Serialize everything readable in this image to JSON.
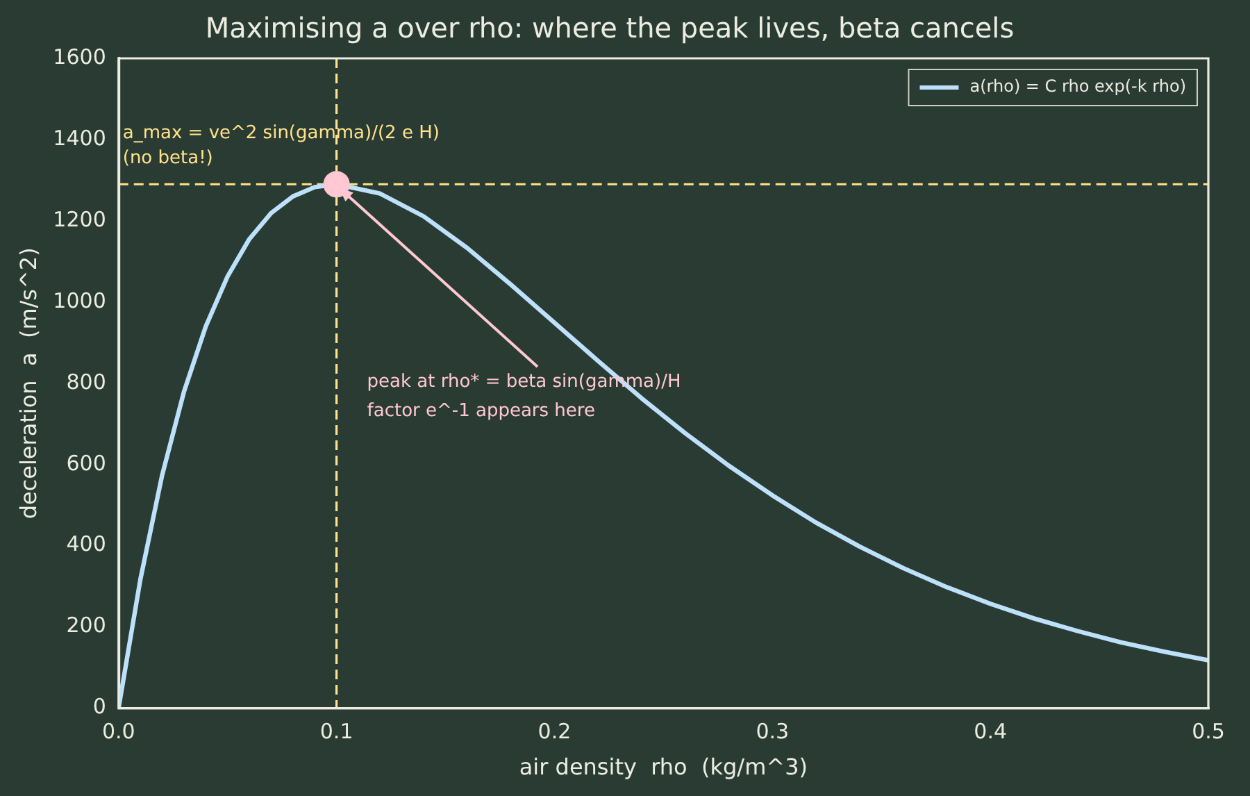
{
  "chart_data": {
    "type": "line",
    "title": "Maximising a over rho: where the peak lives, beta cancels",
    "xlabel": "air density  rho  (kg/m^3)",
    "ylabel": "deceleration  a  (m/s^2)",
    "xlim": [
      0,
      0.5
    ],
    "xticks": [
      {
        "value": 0,
        "label": "0.0"
      },
      0.1,
      0.2,
      0.3,
      0.4,
      0.5
    ],
    "ylim": [
      0,
      1600
    ],
    "yticks": [
      0,
      200,
      400,
      600,
      800,
      1000,
      1200,
      1400,
      1600
    ],
    "grid": false,
    "legend": "top right",
    "marker": "none",
    "line_style": "solid",
    "series": [
      {
        "name": "a(rho) = C rho exp(-k rho)",
        "color": "#bde0fb",
        "x": [
          0,
          0.01,
          0.02,
          0.03,
          0.04,
          0.05,
          0.06,
          0.07,
          0.08,
          0.09,
          0.1,
          0.12,
          0.14,
          0.16,
          0.18,
          0.2,
          0.22,
          0.24,
          0.26,
          0.28,
          0.3,
          0.32,
          0.34,
          0.36,
          0.38,
          0.4,
          0.42,
          0.44,
          0.46,
          0.48,
          0.5
        ],
        "values": [
          0,
          317,
          574,
          779,
          940,
          1063,
          1155,
          1219,
          1260,
          1283,
          1290,
          1267,
          1211,
          1133,
          1043,
          949,
          855,
          763,
          677,
          597,
          524,
          457,
          398,
          345,
          298,
          257,
          221,
          190,
          162,
          139,
          118
        ]
      },
      {
        "type": "scatter",
        "color": "#ffc8d2",
        "x": [
          0.1
        ],
        "values": [
          1290
        ],
        "marker": "circle"
      }
    ],
    "ref_lines": [
      {
        "axis": "x",
        "value": 0.1,
        "color": "#ffe28a",
        "line_style": "dashed"
      },
      {
        "axis": "y",
        "value": 1290,
        "color": "#ffe28a",
        "line_style": "dashed"
      }
    ],
    "annotations": [
      {
        "text": "a_max = ve^2 sin(gamma)/(2 e H)\n(no beta!)",
        "x": 0,
        "y": 1290
      },
      {
        "text": "peak at rho* = beta sin(gamma)/H\nfactor e^-1 appears here",
        "x": 0.1,
        "y": 1290
      }
    ]
  }
}
